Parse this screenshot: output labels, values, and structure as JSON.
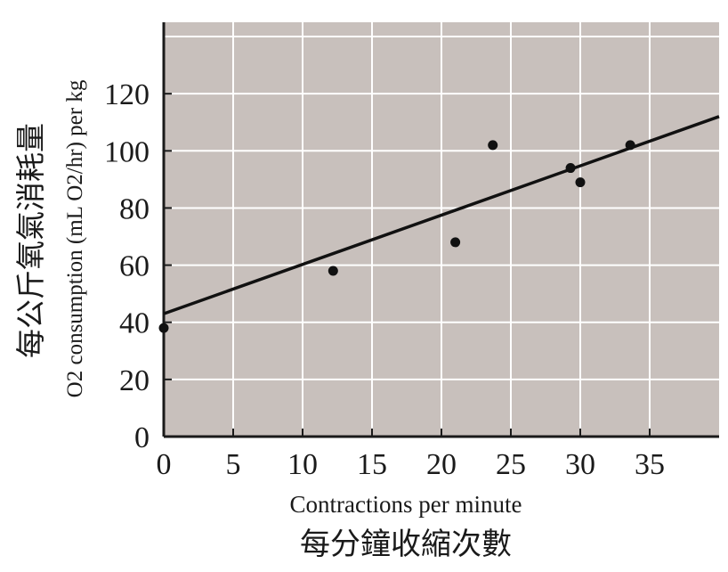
{
  "chart_data": {
    "type": "scatter",
    "title": "",
    "xlabel": "Contractions per minute",
    "xlabel_zh": "每分鐘收縮次數",
    "ylabel": "O2 consumption (mL O2/hr) per kg",
    "ylabel_zh": "每公斤氧氣消耗量",
    "xlim": [
      0,
      40
    ],
    "ylim": [
      0,
      145
    ],
    "xticks": [
      0,
      5,
      10,
      15,
      20,
      25,
      30,
      35
    ],
    "yticks": [
      0,
      20,
      40,
      60,
      80,
      100,
      120
    ],
    "grid": true,
    "background_color": "#c8c0bc",
    "grid_color": "#ffffff",
    "point_color": "#111111",
    "points": [
      {
        "x": 0,
        "y": 38
      },
      {
        "x": 12.2,
        "y": 58
      },
      {
        "x": 21,
        "y": 68
      },
      {
        "x": 23.7,
        "y": 102
      },
      {
        "x": 29.3,
        "y": 94
      },
      {
        "x": 30,
        "y": 89
      },
      {
        "x": 33.6,
        "y": 102
      }
    ],
    "trendline": {
      "x": [
        0,
        40
      ],
      "y": [
        43,
        112
      ]
    }
  }
}
